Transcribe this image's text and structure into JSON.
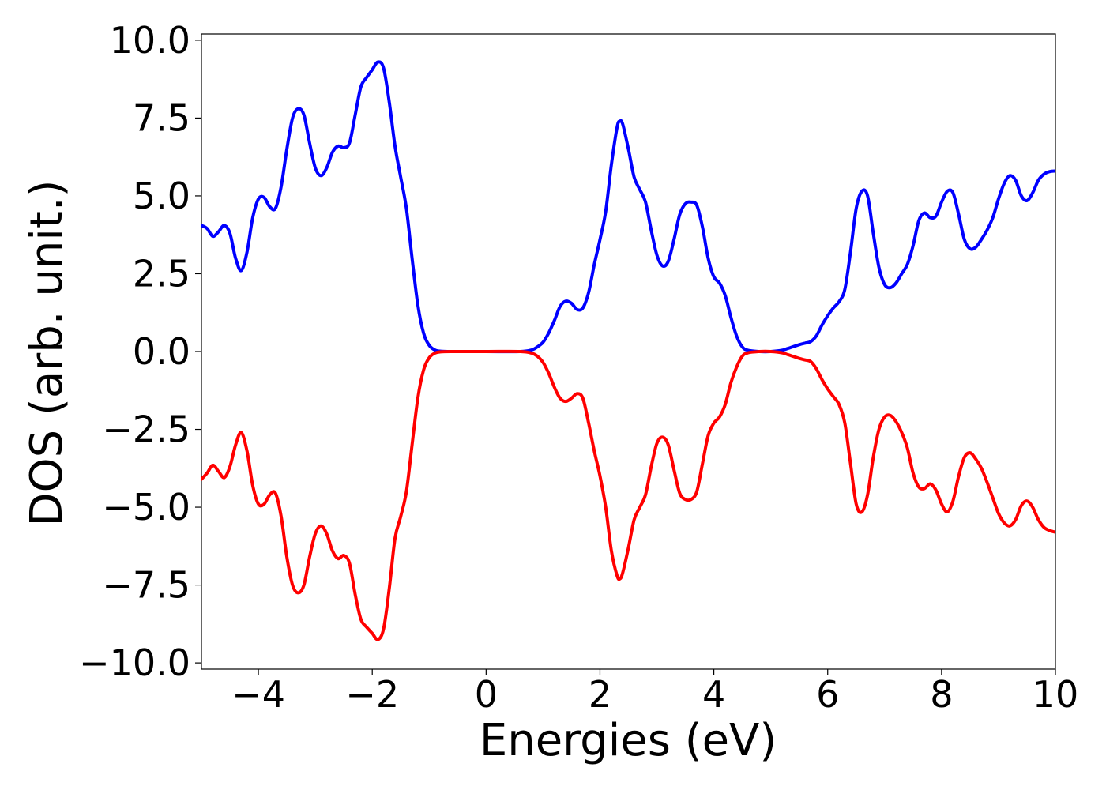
{
  "chart_data": {
    "type": "line",
    "xlabel": "Energies (eV)",
    "ylabel": "DOS (arb. unit.)",
    "xlim": [
      -5,
      10
    ],
    "ylim": [
      -10.2,
      10.2
    ],
    "xticks": [
      -4,
      -2,
      0,
      2,
      4,
      6,
      8,
      10
    ],
    "xtick_labels": [
      "−4",
      "−2",
      "0",
      "2",
      "4",
      "6",
      "8",
      "10"
    ],
    "yticks": [
      10.0,
      7.5,
      5.0,
      2.5,
      0.0,
      -2.5,
      -5.0,
      -7.5,
      -10.0
    ],
    "ytick_labels": [
      "10.0",
      "7.5",
      "5.0",
      "2.5",
      "0.0",
      "−2.5",
      "−5.0",
      "−7.5",
      "−10.0"
    ],
    "grid": false,
    "series": [
      {
        "color": "#0000ff",
        "points": [
          [
            -5.0,
            4.05
          ],
          [
            -4.9,
            3.95
          ],
          [
            -4.8,
            3.7
          ],
          [
            -4.7,
            3.85
          ],
          [
            -4.6,
            4.05
          ],
          [
            -4.5,
            3.8
          ],
          [
            -4.4,
            3.0
          ],
          [
            -4.3,
            2.6
          ],
          [
            -4.2,
            3.2
          ],
          [
            -4.1,
            4.3
          ],
          [
            -4.0,
            4.9
          ],
          [
            -3.9,
            4.95
          ],
          [
            -3.8,
            4.65
          ],
          [
            -3.7,
            4.6
          ],
          [
            -3.6,
            5.3
          ],
          [
            -3.5,
            6.5
          ],
          [
            -3.4,
            7.5
          ],
          [
            -3.3,
            7.8
          ],
          [
            -3.2,
            7.6
          ],
          [
            -3.1,
            6.7
          ],
          [
            -3.0,
            5.9
          ],
          [
            -2.9,
            5.65
          ],
          [
            -2.8,
            5.9
          ],
          [
            -2.7,
            6.4
          ],
          [
            -2.6,
            6.6
          ],
          [
            -2.5,
            6.55
          ],
          [
            -2.4,
            6.7
          ],
          [
            -2.3,
            7.6
          ],
          [
            -2.2,
            8.5
          ],
          [
            -2.1,
            8.8
          ],
          [
            -2.0,
            9.05
          ],
          [
            -1.9,
            9.3
          ],
          [
            -1.8,
            9.1
          ],
          [
            -1.7,
            8.0
          ],
          [
            -1.6,
            6.6
          ],
          [
            -1.5,
            5.6
          ],
          [
            -1.4,
            4.6
          ],
          [
            -1.3,
            3.0
          ],
          [
            -1.2,
            1.5
          ],
          [
            -1.1,
            0.6
          ],
          [
            -1.0,
            0.2
          ],
          [
            -0.9,
            0.05
          ],
          [
            -0.8,
            0.01
          ],
          [
            -0.6,
            0.0
          ],
          [
            0.0,
            0.0
          ],
          [
            0.6,
            0.0
          ],
          [
            0.8,
            0.05
          ],
          [
            0.9,
            0.15
          ],
          [
            1.0,
            0.3
          ],
          [
            1.1,
            0.6
          ],
          [
            1.2,
            1.0
          ],
          [
            1.3,
            1.45
          ],
          [
            1.4,
            1.62
          ],
          [
            1.5,
            1.55
          ],
          [
            1.6,
            1.35
          ],
          [
            1.7,
            1.4
          ],
          [
            1.8,
            1.9
          ],
          [
            1.9,
            2.8
          ],
          [
            2.0,
            3.6
          ],
          [
            2.1,
            4.5
          ],
          [
            2.2,
            6.0
          ],
          [
            2.3,
            7.2
          ],
          [
            2.35,
            7.4
          ],
          [
            2.4,
            7.3
          ],
          [
            2.5,
            6.5
          ],
          [
            2.6,
            5.6
          ],
          [
            2.7,
            5.2
          ],
          [
            2.8,
            4.8
          ],
          [
            2.9,
            3.9
          ],
          [
            3.0,
            3.1
          ],
          [
            3.1,
            2.75
          ],
          [
            3.2,
            2.9
          ],
          [
            3.3,
            3.6
          ],
          [
            3.4,
            4.4
          ],
          [
            3.5,
            4.75
          ],
          [
            3.6,
            4.8
          ],
          [
            3.7,
            4.7
          ],
          [
            3.8,
            4.0
          ],
          [
            3.9,
            3.0
          ],
          [
            4.0,
            2.4
          ],
          [
            4.1,
            2.2
          ],
          [
            4.2,
            1.8
          ],
          [
            4.3,
            1.1
          ],
          [
            4.4,
            0.5
          ],
          [
            4.5,
            0.15
          ],
          [
            4.6,
            0.04
          ],
          [
            4.8,
            0.0
          ],
          [
            5.0,
            0.0
          ],
          [
            5.2,
            0.04
          ],
          [
            5.3,
            0.1
          ],
          [
            5.5,
            0.22
          ],
          [
            5.6,
            0.27
          ],
          [
            5.7,
            0.32
          ],
          [
            5.8,
            0.5
          ],
          [
            5.9,
            0.85
          ],
          [
            6.0,
            1.15
          ],
          [
            6.1,
            1.4
          ],
          [
            6.2,
            1.6
          ],
          [
            6.3,
            2.0
          ],
          [
            6.4,
            3.2
          ],
          [
            6.5,
            4.6
          ],
          [
            6.6,
            5.15
          ],
          [
            6.7,
            5.0
          ],
          [
            6.8,
            3.8
          ],
          [
            6.9,
            2.7
          ],
          [
            7.0,
            2.15
          ],
          [
            7.1,
            2.05
          ],
          [
            7.2,
            2.2
          ],
          [
            7.3,
            2.5
          ],
          [
            7.4,
            2.8
          ],
          [
            7.5,
            3.4
          ],
          [
            7.6,
            4.2
          ],
          [
            7.7,
            4.45
          ],
          [
            7.8,
            4.3
          ],
          [
            7.9,
            4.35
          ],
          [
            8.0,
            4.8
          ],
          [
            8.1,
            5.15
          ],
          [
            8.2,
            5.1
          ],
          [
            8.3,
            4.4
          ],
          [
            8.4,
            3.6
          ],
          [
            8.5,
            3.3
          ],
          [
            8.6,
            3.35
          ],
          [
            8.7,
            3.6
          ],
          [
            8.8,
            3.9
          ],
          [
            8.9,
            4.3
          ],
          [
            9.0,
            4.9
          ],
          [
            9.1,
            5.4
          ],
          [
            9.2,
            5.65
          ],
          [
            9.3,
            5.5
          ],
          [
            9.4,
            5.0
          ],
          [
            9.5,
            4.85
          ],
          [
            9.6,
            5.1
          ],
          [
            9.7,
            5.5
          ],
          [
            9.8,
            5.7
          ],
          [
            9.9,
            5.78
          ],
          [
            10.0,
            5.8
          ]
        ]
      },
      {
        "color": "#ff0000",
        "points": [
          [
            -5.0,
            -4.1
          ],
          [
            -4.9,
            -3.9
          ],
          [
            -4.8,
            -3.65
          ],
          [
            -4.7,
            -3.85
          ],
          [
            -4.6,
            -4.05
          ],
          [
            -4.5,
            -3.7
          ],
          [
            -4.4,
            -3.0
          ],
          [
            -4.3,
            -2.6
          ],
          [
            -4.2,
            -3.2
          ],
          [
            -4.1,
            -4.3
          ],
          [
            -4.0,
            -4.9
          ],
          [
            -3.9,
            -4.9
          ],
          [
            -3.8,
            -4.6
          ],
          [
            -3.7,
            -4.55
          ],
          [
            -3.6,
            -5.3
          ],
          [
            -3.5,
            -6.6
          ],
          [
            -3.4,
            -7.5
          ],
          [
            -3.3,
            -7.75
          ],
          [
            -3.2,
            -7.5
          ],
          [
            -3.1,
            -6.6
          ],
          [
            -3.0,
            -5.85
          ],
          [
            -2.9,
            -5.6
          ],
          [
            -2.8,
            -5.85
          ],
          [
            -2.7,
            -6.4
          ],
          [
            -2.6,
            -6.65
          ],
          [
            -2.5,
            -6.55
          ],
          [
            -2.4,
            -6.8
          ],
          [
            -2.3,
            -7.8
          ],
          [
            -2.2,
            -8.6
          ],
          [
            -2.1,
            -8.85
          ],
          [
            -2.0,
            -9.05
          ],
          [
            -1.9,
            -9.25
          ],
          [
            -1.8,
            -8.9
          ],
          [
            -1.7,
            -7.6
          ],
          [
            -1.6,
            -6.0
          ],
          [
            -1.5,
            -5.3
          ],
          [
            -1.4,
            -4.5
          ],
          [
            -1.3,
            -3.0
          ],
          [
            -1.2,
            -1.5
          ],
          [
            -1.1,
            -0.6
          ],
          [
            -1.0,
            -0.2
          ],
          [
            -0.9,
            -0.05
          ],
          [
            -0.8,
            -0.01
          ],
          [
            -0.6,
            0.0
          ],
          [
            0.0,
            0.0
          ],
          [
            0.6,
            0.0
          ],
          [
            0.8,
            -0.05
          ],
          [
            0.9,
            -0.15
          ],
          [
            1.0,
            -0.35
          ],
          [
            1.1,
            -0.7
          ],
          [
            1.2,
            -1.15
          ],
          [
            1.3,
            -1.5
          ],
          [
            1.4,
            -1.6
          ],
          [
            1.5,
            -1.5
          ],
          [
            1.6,
            -1.35
          ],
          [
            1.7,
            -1.5
          ],
          [
            1.8,
            -2.3
          ],
          [
            1.9,
            -3.2
          ],
          [
            2.0,
            -4.0
          ],
          [
            2.1,
            -5.0
          ],
          [
            2.2,
            -6.4
          ],
          [
            2.3,
            -7.2
          ],
          [
            2.35,
            -7.3
          ],
          [
            2.4,
            -7.1
          ],
          [
            2.5,
            -6.3
          ],
          [
            2.6,
            -5.4
          ],
          [
            2.7,
            -5.0
          ],
          [
            2.8,
            -4.6
          ],
          [
            2.9,
            -3.7
          ],
          [
            3.0,
            -2.95
          ],
          [
            3.1,
            -2.75
          ],
          [
            3.2,
            -3.0
          ],
          [
            3.3,
            -3.8
          ],
          [
            3.4,
            -4.55
          ],
          [
            3.5,
            -4.75
          ],
          [
            3.6,
            -4.75
          ],
          [
            3.7,
            -4.5
          ],
          [
            3.8,
            -3.6
          ],
          [
            3.9,
            -2.7
          ],
          [
            4.0,
            -2.3
          ],
          [
            4.1,
            -2.1
          ],
          [
            4.2,
            -1.7
          ],
          [
            4.3,
            -1.0
          ],
          [
            4.4,
            -0.5
          ],
          [
            4.5,
            -0.15
          ],
          [
            4.6,
            -0.04
          ],
          [
            4.8,
            0.0
          ],
          [
            5.0,
            0.0
          ],
          [
            5.2,
            -0.04
          ],
          [
            5.3,
            -0.1
          ],
          [
            5.5,
            -0.22
          ],
          [
            5.6,
            -0.27
          ],
          [
            5.7,
            -0.32
          ],
          [
            5.8,
            -0.55
          ],
          [
            5.9,
            -0.9
          ],
          [
            6.0,
            -1.2
          ],
          [
            6.1,
            -1.45
          ],
          [
            6.2,
            -1.7
          ],
          [
            6.3,
            -2.3
          ],
          [
            6.4,
            -3.6
          ],
          [
            6.5,
            -4.9
          ],
          [
            6.6,
            -5.15
          ],
          [
            6.7,
            -4.6
          ],
          [
            6.8,
            -3.4
          ],
          [
            6.9,
            -2.5
          ],
          [
            7.0,
            -2.1
          ],
          [
            7.1,
            -2.05
          ],
          [
            7.2,
            -2.25
          ],
          [
            7.3,
            -2.6
          ],
          [
            7.4,
            -3.1
          ],
          [
            7.5,
            -3.9
          ],
          [
            7.6,
            -4.35
          ],
          [
            7.7,
            -4.4
          ],
          [
            7.8,
            -4.25
          ],
          [
            7.9,
            -4.45
          ],
          [
            8.0,
            -4.9
          ],
          [
            8.1,
            -5.15
          ],
          [
            8.2,
            -4.8
          ],
          [
            8.3,
            -4.0
          ],
          [
            8.4,
            -3.4
          ],
          [
            8.5,
            -3.25
          ],
          [
            8.6,
            -3.45
          ],
          [
            8.7,
            -3.75
          ],
          [
            8.8,
            -4.2
          ],
          [
            8.9,
            -4.7
          ],
          [
            9.0,
            -5.2
          ],
          [
            9.1,
            -5.5
          ],
          [
            9.2,
            -5.6
          ],
          [
            9.3,
            -5.4
          ],
          [
            9.4,
            -4.95
          ],
          [
            9.5,
            -4.8
          ],
          [
            9.6,
            -5.0
          ],
          [
            9.7,
            -5.4
          ],
          [
            9.8,
            -5.65
          ],
          [
            9.9,
            -5.75
          ],
          [
            10.0,
            -5.8
          ]
        ]
      }
    ]
  }
}
